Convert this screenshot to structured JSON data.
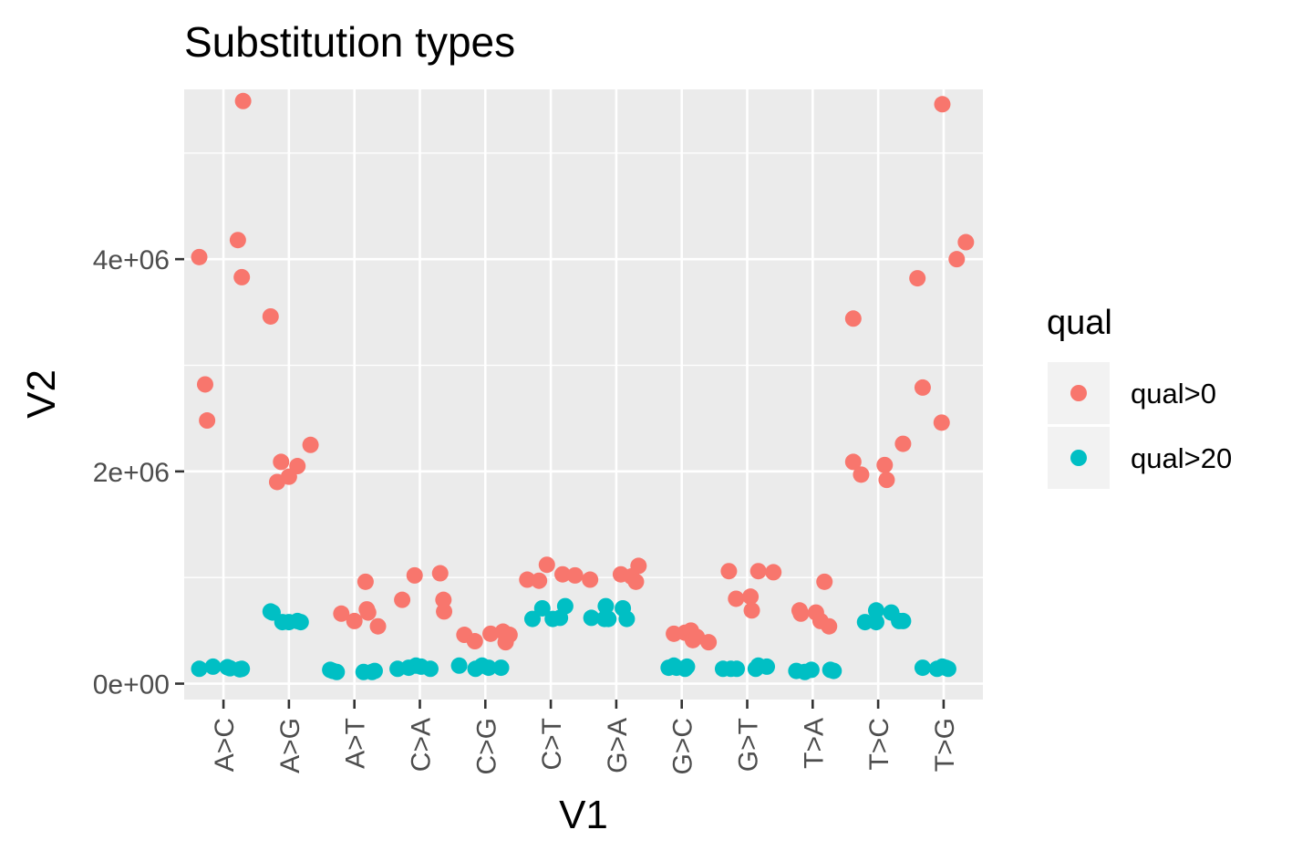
{
  "chart_data": {
    "type": "scatter",
    "title": "Substitution types",
    "xlabel": "V1",
    "ylabel": "V2",
    "categories": [
      "A>C",
      "A>G",
      "A>T",
      "C>A",
      "C>G",
      "C>T",
      "G>A",
      "G>C",
      "G>T",
      "T>A",
      "T>C",
      "T>G"
    ],
    "yticks": [
      {
        "value": 0,
        "label": "0e+00"
      },
      {
        "value": 2000000,
        "label": "2e+06"
      },
      {
        "value": 4000000,
        "label": "4e+06"
      }
    ],
    "ylim": [
      -150000,
      5600000
    ],
    "grid": true,
    "legend": {
      "title": "qual",
      "position": "right"
    },
    "series": [
      {
        "name": "qual>0",
        "color": "#F8766D",
        "points": [
          {
            "cat": 0,
            "jitter": -0.37,
            "y": 4020000
          },
          {
            "cat": 0,
            "jitter": -0.28,
            "y": 2820000
          },
          {
            "cat": 0,
            "jitter": -0.25,
            "y": 2480000
          },
          {
            "cat": 0,
            "jitter": 0.22,
            "y": 4180000
          },
          {
            "cat": 0,
            "jitter": 0.28,
            "y": 3830000
          },
          {
            "cat": 0,
            "jitter": 0.3,
            "y": 5490000
          },
          {
            "cat": 1,
            "jitter": -0.28,
            "y": 3460000
          },
          {
            "cat": 1,
            "jitter": -0.18,
            "y": 1900000
          },
          {
            "cat": 1,
            "jitter": -0.12,
            "y": 2090000
          },
          {
            "cat": 1,
            "jitter": 0.0,
            "y": 1950000
          },
          {
            "cat": 1,
            "jitter": 0.13,
            "y": 2050000
          },
          {
            "cat": 1,
            "jitter": 0.33,
            "y": 2250000
          },
          {
            "cat": 2,
            "jitter": -0.2,
            "y": 660000
          },
          {
            "cat": 2,
            "jitter": 0.0,
            "y": 590000
          },
          {
            "cat": 2,
            "jitter": 0.17,
            "y": 960000
          },
          {
            "cat": 2,
            "jitter": 0.19,
            "y": 700000
          },
          {
            "cat": 2,
            "jitter": 0.21,
            "y": 670000
          },
          {
            "cat": 2,
            "jitter": 0.36,
            "y": 540000
          },
          {
            "cat": 3,
            "jitter": -0.27,
            "y": 790000
          },
          {
            "cat": 3,
            "jitter": -0.08,
            "y": 1020000
          },
          {
            "cat": 3,
            "jitter": 0.31,
            "y": 1040000
          },
          {
            "cat": 3,
            "jitter": 0.36,
            "y": 790000
          },
          {
            "cat": 3,
            "jitter": 0.37,
            "y": 680000
          },
          {
            "cat": 4,
            "jitter": -0.32,
            "y": 460000
          },
          {
            "cat": 4,
            "jitter": -0.16,
            "y": 400000
          },
          {
            "cat": 4,
            "jitter": 0.08,
            "y": 470000
          },
          {
            "cat": 4,
            "jitter": 0.27,
            "y": 490000
          },
          {
            "cat": 4,
            "jitter": 0.31,
            "y": 390000
          },
          {
            "cat": 4,
            "jitter": 0.37,
            "y": 460000
          },
          {
            "cat": 5,
            "jitter": -0.36,
            "y": 980000
          },
          {
            "cat": 5,
            "jitter": -0.18,
            "y": 970000
          },
          {
            "cat": 5,
            "jitter": -0.06,
            "y": 1120000
          },
          {
            "cat": 5,
            "jitter": 0.18,
            "y": 1030000
          },
          {
            "cat": 5,
            "jitter": 0.37,
            "y": 1020000
          },
          {
            "cat": 6,
            "jitter": -0.4,
            "y": 980000
          },
          {
            "cat": 6,
            "jitter": 0.07,
            "y": 1030000
          },
          {
            "cat": 6,
            "jitter": 0.23,
            "y": 1010000
          },
          {
            "cat": 6,
            "jitter": 0.3,
            "y": 960000
          },
          {
            "cat": 6,
            "jitter": 0.34,
            "y": 1110000
          },
          {
            "cat": 7,
            "jitter": -0.12,
            "y": 470000
          },
          {
            "cat": 7,
            "jitter": 0.05,
            "y": 480000
          },
          {
            "cat": 7,
            "jitter": 0.14,
            "y": 500000
          },
          {
            "cat": 7,
            "jitter": 0.17,
            "y": 410000
          },
          {
            "cat": 7,
            "jitter": 0.23,
            "y": 440000
          },
          {
            "cat": 7,
            "jitter": 0.41,
            "y": 390000
          },
          {
            "cat": 8,
            "jitter": -0.28,
            "y": 1060000
          },
          {
            "cat": 8,
            "jitter": -0.17,
            "y": 800000
          },
          {
            "cat": 8,
            "jitter": 0.05,
            "y": 820000
          },
          {
            "cat": 8,
            "jitter": 0.07,
            "y": 690000
          },
          {
            "cat": 8,
            "jitter": 0.17,
            "y": 1060000
          },
          {
            "cat": 8,
            "jitter": 0.4,
            "y": 1050000
          },
          {
            "cat": 9,
            "jitter": -0.2,
            "y": 690000
          },
          {
            "cat": 9,
            "jitter": -0.18,
            "y": 660000
          },
          {
            "cat": 9,
            "jitter": 0.05,
            "y": 670000
          },
          {
            "cat": 9,
            "jitter": 0.12,
            "y": 590000
          },
          {
            "cat": 9,
            "jitter": 0.18,
            "y": 960000
          },
          {
            "cat": 9,
            "jitter": 0.25,
            "y": 540000
          },
          {
            "cat": 10,
            "jitter": -0.38,
            "y": 3440000
          },
          {
            "cat": 10,
            "jitter": -0.38,
            "y": 2090000
          },
          {
            "cat": 10,
            "jitter": -0.26,
            "y": 1970000
          },
          {
            "cat": 10,
            "jitter": 0.1,
            "y": 2060000
          },
          {
            "cat": 10,
            "jitter": 0.13,
            "y": 1920000
          },
          {
            "cat": 10,
            "jitter": 0.38,
            "y": 2260000
          },
          {
            "cat": 11,
            "jitter": -0.4,
            "y": 3820000
          },
          {
            "cat": 11,
            "jitter": -0.32,
            "y": 2790000
          },
          {
            "cat": 11,
            "jitter": -0.03,
            "y": 2460000
          },
          {
            "cat": 11,
            "jitter": -0.02,
            "y": 5460000
          },
          {
            "cat": 11,
            "jitter": 0.2,
            "y": 4000000
          },
          {
            "cat": 11,
            "jitter": 0.34,
            "y": 4160000
          }
        ]
      },
      {
        "name": "qual>20",
        "color": "#00BFC4",
        "points": [
          {
            "cat": 0,
            "jitter": -0.37,
            "y": 140000
          },
          {
            "cat": 0,
            "jitter": -0.16,
            "y": 160000
          },
          {
            "cat": 0,
            "jitter": 0.06,
            "y": 155000
          },
          {
            "cat": 0,
            "jitter": 0.1,
            "y": 145000
          },
          {
            "cat": 0,
            "jitter": 0.25,
            "y": 135000
          },
          {
            "cat": 0,
            "jitter": 0.28,
            "y": 140000
          },
          {
            "cat": 1,
            "jitter": -0.28,
            "y": 680000
          },
          {
            "cat": 1,
            "jitter": -0.25,
            "y": 670000
          },
          {
            "cat": 1,
            "jitter": -0.1,
            "y": 580000
          },
          {
            "cat": 1,
            "jitter": 0.0,
            "y": 580000
          },
          {
            "cat": 1,
            "jitter": 0.13,
            "y": 590000
          },
          {
            "cat": 1,
            "jitter": 0.18,
            "y": 580000
          },
          {
            "cat": 2,
            "jitter": -0.37,
            "y": 130000
          },
          {
            "cat": 2,
            "jitter": -0.33,
            "y": 120000
          },
          {
            "cat": 2,
            "jitter": -0.27,
            "y": 110000
          },
          {
            "cat": 2,
            "jitter": 0.14,
            "y": 110000
          },
          {
            "cat": 2,
            "jitter": 0.27,
            "y": 110000
          },
          {
            "cat": 2,
            "jitter": 0.31,
            "y": 120000
          },
          {
            "cat": 3,
            "jitter": -0.34,
            "y": 140000
          },
          {
            "cat": 3,
            "jitter": -0.17,
            "y": 150000
          },
          {
            "cat": 3,
            "jitter": -0.06,
            "y": 170000
          },
          {
            "cat": 3,
            "jitter": 0.02,
            "y": 160000
          },
          {
            "cat": 3,
            "jitter": 0.16,
            "y": 140000
          },
          {
            "cat": 4,
            "jitter": -0.4,
            "y": 170000
          },
          {
            "cat": 4,
            "jitter": -0.15,
            "y": 140000
          },
          {
            "cat": 4,
            "jitter": -0.05,
            "y": 170000
          },
          {
            "cat": 4,
            "jitter": 0.05,
            "y": 150000
          },
          {
            "cat": 4,
            "jitter": 0.24,
            "y": 150000
          },
          {
            "cat": 5,
            "jitter": -0.28,
            "y": 610000
          },
          {
            "cat": 5,
            "jitter": -0.13,
            "y": 710000
          },
          {
            "cat": 5,
            "jitter": 0.03,
            "y": 610000
          },
          {
            "cat": 5,
            "jitter": 0.14,
            "y": 620000
          },
          {
            "cat": 5,
            "jitter": 0.22,
            "y": 730000
          },
          {
            "cat": 6,
            "jitter": -0.38,
            "y": 620000
          },
          {
            "cat": 6,
            "jitter": -0.18,
            "y": 610000
          },
          {
            "cat": 6,
            "jitter": -0.16,
            "y": 730000
          },
          {
            "cat": 6,
            "jitter": -0.12,
            "y": 610000
          },
          {
            "cat": 6,
            "jitter": 0.1,
            "y": 710000
          },
          {
            "cat": 6,
            "jitter": 0.16,
            "y": 610000
          },
          {
            "cat": 7,
            "jitter": -0.2,
            "y": 150000
          },
          {
            "cat": 7,
            "jitter": -0.12,
            "y": 170000
          },
          {
            "cat": 7,
            "jitter": -0.08,
            "y": 150000
          },
          {
            "cat": 7,
            "jitter": 0.05,
            "y": 140000
          },
          {
            "cat": 7,
            "jitter": 0.08,
            "y": 160000
          },
          {
            "cat": 8,
            "jitter": -0.37,
            "y": 140000
          },
          {
            "cat": 8,
            "jitter": -0.25,
            "y": 140000
          },
          {
            "cat": 8,
            "jitter": -0.16,
            "y": 140000
          },
          {
            "cat": 8,
            "jitter": 0.13,
            "y": 140000
          },
          {
            "cat": 8,
            "jitter": 0.17,
            "y": 170000
          },
          {
            "cat": 8,
            "jitter": 0.3,
            "y": 160000
          },
          {
            "cat": 9,
            "jitter": -0.25,
            "y": 120000
          },
          {
            "cat": 9,
            "jitter": -0.12,
            "y": 110000
          },
          {
            "cat": 9,
            "jitter": -0.02,
            "y": 130000
          },
          {
            "cat": 9,
            "jitter": 0.27,
            "y": 130000
          },
          {
            "cat": 9,
            "jitter": 0.32,
            "y": 120000
          },
          {
            "cat": 10,
            "jitter": -0.2,
            "y": 580000
          },
          {
            "cat": 10,
            "jitter": -0.03,
            "y": 580000
          },
          {
            "cat": 10,
            "jitter": -0.03,
            "y": 690000
          },
          {
            "cat": 10,
            "jitter": 0.2,
            "y": 670000
          },
          {
            "cat": 10,
            "jitter": 0.32,
            "y": 590000
          },
          {
            "cat": 10,
            "jitter": 0.38,
            "y": 590000
          },
          {
            "cat": 11,
            "jitter": -0.32,
            "y": 150000
          },
          {
            "cat": 11,
            "jitter": -0.1,
            "y": 140000
          },
          {
            "cat": 11,
            "jitter": -0.02,
            "y": 160000
          },
          {
            "cat": 11,
            "jitter": 0.03,
            "y": 150000
          },
          {
            "cat": 11,
            "jitter": 0.07,
            "y": 140000
          }
        ]
      }
    ]
  }
}
